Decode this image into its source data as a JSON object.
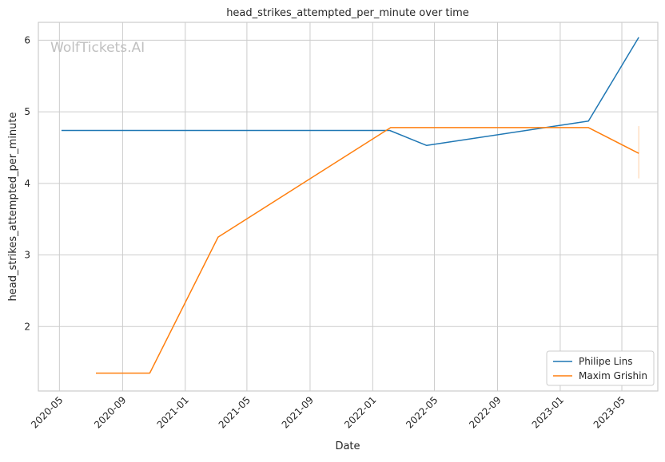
{
  "watermark": "WolfTickets.AI",
  "chart_data": {
    "type": "line",
    "title": "head_strikes_attempted_per_minute over time",
    "xlabel": "Date",
    "ylabel": "head_strikes_attempted_per_minute",
    "x_type": "date",
    "xlim": [
      "2020-03-21",
      "2023-07-10"
    ],
    "ylim": [
      1.1,
      6.25
    ],
    "x_ticks": [
      "2020-05-01",
      "2020-09-01",
      "2021-01-01",
      "2021-05-01",
      "2021-09-01",
      "2022-01-01",
      "2022-05-01",
      "2022-09-01",
      "2023-01-01",
      "2023-05-01"
    ],
    "x_tick_labels": [
      "2020-05",
      "2020-09",
      "2021-01",
      "2021-05",
      "2021-09",
      "2022-01",
      "2022-05",
      "2022-09",
      "2023-01",
      "2023-05"
    ],
    "y_ticks": [
      2,
      3,
      4,
      5,
      6
    ],
    "y_tick_labels": [
      "2",
      "3",
      "4",
      "5",
      "6"
    ],
    "grid": true,
    "legend_position": "bottom-right",
    "series": [
      {
        "name": "Philipe Lins",
        "color": "#1f77b4",
        "points": [
          {
            "x": "2020-05-05",
            "y": 4.74
          },
          {
            "x": "2022-02-03",
            "y": 4.74
          },
          {
            "x": "2022-04-16",
            "y": 4.53
          },
          {
            "x": "2023-02-25",
            "y": 4.87
          },
          {
            "x": "2023-06-03",
            "y": 6.04
          }
        ]
      },
      {
        "name": "Maxim Grishin",
        "color": "#ff7f0e",
        "points": [
          {
            "x": "2020-07-11",
            "y": 1.35
          },
          {
            "x": "2020-10-24",
            "y": 1.35
          },
          {
            "x": "2021-03-06",
            "y": 3.25
          },
          {
            "x": "2022-02-05",
            "y": 4.78
          },
          {
            "x": "2023-02-25",
            "y": 4.78
          },
          {
            "x": "2023-06-03",
            "y": 4.42
          }
        ],
        "error_band": {
          "x": "2023-06-03",
          "low": 4.07,
          "high": 4.8
        }
      }
    ]
  }
}
